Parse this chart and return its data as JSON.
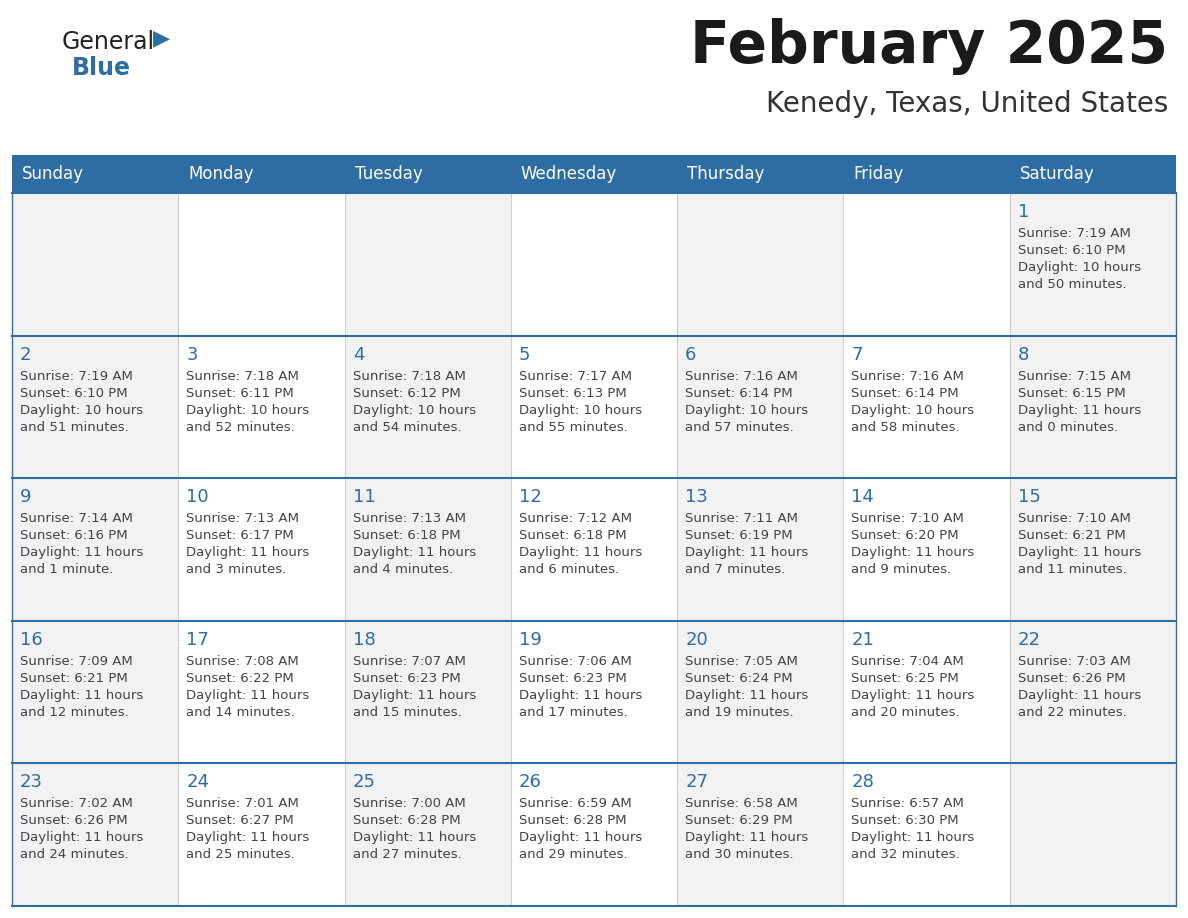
{
  "title": "February 2025",
  "subtitle": "Kenedy, Texas, United States",
  "header_bg": "#2E6DA4",
  "header_text_color": "#FFFFFF",
  "day_number_color": "#2E6DA4",
  "text_color": "#444444",
  "line_color": "#2E6DA4",
  "cell_bg_even": "#F2F2F2",
  "cell_bg_odd": "#FFFFFF",
  "days_of_week": [
    "Sunday",
    "Monday",
    "Tuesday",
    "Wednesday",
    "Thursday",
    "Friday",
    "Saturday"
  ],
  "calendar_data": [
    [
      null,
      null,
      null,
      null,
      null,
      null,
      {
        "day": 1,
        "sunrise": "7:19 AM",
        "sunset": "6:10 PM",
        "daylight": "10 hours",
        "daylight2": "and 50 minutes."
      }
    ],
    [
      {
        "day": 2,
        "sunrise": "7:19 AM",
        "sunset": "6:10 PM",
        "daylight": "10 hours",
        "daylight2": "and 51 minutes."
      },
      {
        "day": 3,
        "sunrise": "7:18 AM",
        "sunset": "6:11 PM",
        "daylight": "10 hours",
        "daylight2": "and 52 minutes."
      },
      {
        "day": 4,
        "sunrise": "7:18 AM",
        "sunset": "6:12 PM",
        "daylight": "10 hours",
        "daylight2": "and 54 minutes."
      },
      {
        "day": 5,
        "sunrise": "7:17 AM",
        "sunset": "6:13 PM",
        "daylight": "10 hours",
        "daylight2": "and 55 minutes."
      },
      {
        "day": 6,
        "sunrise": "7:16 AM",
        "sunset": "6:14 PM",
        "daylight": "10 hours",
        "daylight2": "and 57 minutes."
      },
      {
        "day": 7,
        "sunrise": "7:16 AM",
        "sunset": "6:14 PM",
        "daylight": "10 hours",
        "daylight2": "and 58 minutes."
      },
      {
        "day": 8,
        "sunrise": "7:15 AM",
        "sunset": "6:15 PM",
        "daylight": "11 hours",
        "daylight2": "and 0 minutes."
      }
    ],
    [
      {
        "day": 9,
        "sunrise": "7:14 AM",
        "sunset": "6:16 PM",
        "daylight": "11 hours",
        "daylight2": "and 1 minute."
      },
      {
        "day": 10,
        "sunrise": "7:13 AM",
        "sunset": "6:17 PM",
        "daylight": "11 hours",
        "daylight2": "and 3 minutes."
      },
      {
        "day": 11,
        "sunrise": "7:13 AM",
        "sunset": "6:18 PM",
        "daylight": "11 hours",
        "daylight2": "and 4 minutes."
      },
      {
        "day": 12,
        "sunrise": "7:12 AM",
        "sunset": "6:18 PM",
        "daylight": "11 hours",
        "daylight2": "and 6 minutes."
      },
      {
        "day": 13,
        "sunrise": "7:11 AM",
        "sunset": "6:19 PM",
        "daylight": "11 hours",
        "daylight2": "and 7 minutes."
      },
      {
        "day": 14,
        "sunrise": "7:10 AM",
        "sunset": "6:20 PM",
        "daylight": "11 hours",
        "daylight2": "and 9 minutes."
      },
      {
        "day": 15,
        "sunrise": "7:10 AM",
        "sunset": "6:21 PM",
        "daylight": "11 hours",
        "daylight2": "and 11 minutes."
      }
    ],
    [
      {
        "day": 16,
        "sunrise": "7:09 AM",
        "sunset": "6:21 PM",
        "daylight": "11 hours",
        "daylight2": "and 12 minutes."
      },
      {
        "day": 17,
        "sunrise": "7:08 AM",
        "sunset": "6:22 PM",
        "daylight": "11 hours",
        "daylight2": "and 14 minutes."
      },
      {
        "day": 18,
        "sunrise": "7:07 AM",
        "sunset": "6:23 PM",
        "daylight": "11 hours",
        "daylight2": "and 15 minutes."
      },
      {
        "day": 19,
        "sunrise": "7:06 AM",
        "sunset": "6:23 PM",
        "daylight": "11 hours",
        "daylight2": "and 17 minutes."
      },
      {
        "day": 20,
        "sunrise": "7:05 AM",
        "sunset": "6:24 PM",
        "daylight": "11 hours",
        "daylight2": "and 19 minutes."
      },
      {
        "day": 21,
        "sunrise": "7:04 AM",
        "sunset": "6:25 PM",
        "daylight": "11 hours",
        "daylight2": "and 20 minutes."
      },
      {
        "day": 22,
        "sunrise": "7:03 AM",
        "sunset": "6:26 PM",
        "daylight": "11 hours",
        "daylight2": "and 22 minutes."
      }
    ],
    [
      {
        "day": 23,
        "sunrise": "7:02 AM",
        "sunset": "6:26 PM",
        "daylight": "11 hours",
        "daylight2": "and 24 minutes."
      },
      {
        "day": 24,
        "sunrise": "7:01 AM",
        "sunset": "6:27 PM",
        "daylight": "11 hours",
        "daylight2": "and 25 minutes."
      },
      {
        "day": 25,
        "sunrise": "7:00 AM",
        "sunset": "6:28 PM",
        "daylight": "11 hours",
        "daylight2": "and 27 minutes."
      },
      {
        "day": 26,
        "sunrise": "6:59 AM",
        "sunset": "6:28 PM",
        "daylight": "11 hours",
        "daylight2": "and 29 minutes."
      },
      {
        "day": 27,
        "sunrise": "6:58 AM",
        "sunset": "6:29 PM",
        "daylight": "11 hours",
        "daylight2": "and 30 minutes."
      },
      {
        "day": 28,
        "sunrise": "6:57 AM",
        "sunset": "6:30 PM",
        "daylight": "11 hours",
        "daylight2": "and 32 minutes."
      },
      null
    ]
  ],
  "logo_general_color": "#222222",
  "logo_blue_color": "#2E6DA4",
  "logo_triangle_color": "#2E6DA4"
}
